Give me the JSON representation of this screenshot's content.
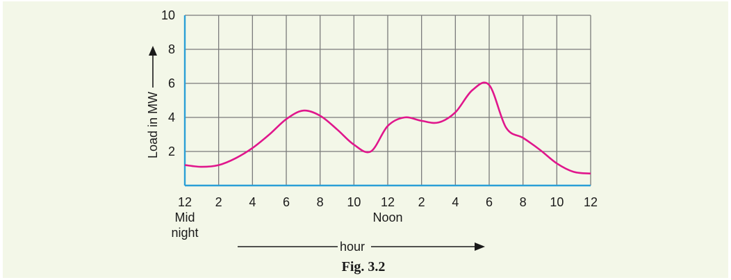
{
  "chart_data": {
    "type": "line",
    "caption": "Fig. 3.2",
    "ylabel": "Load in MW",
    "xlabel": "hour",
    "ylim": [
      0,
      10
    ],
    "xlim": [
      0,
      24
    ],
    "y_ticks": [
      "2",
      "4",
      "6",
      "8",
      "10"
    ],
    "x_ticks": [
      "12",
      "2",
      "4",
      "6",
      "8",
      "10",
      "12",
      "2",
      "4",
      "6",
      "8",
      "10",
      "12"
    ],
    "x_annotations": [
      {
        "label": "Mid",
        "at_hour": 0,
        "line": 1
      },
      {
        "label": "night",
        "at_hour": 0,
        "line": 2
      },
      {
        "label": "Noon",
        "at_hour": 12,
        "line": 1
      }
    ],
    "grid": true,
    "colors": {
      "curve": "#e0168c",
      "axes": "#2a9fd6",
      "grid": "#7a7a7a",
      "background": "#f3f7e8"
    },
    "series": [
      {
        "x": [
          0,
          1,
          2,
          3,
          4,
          5,
          6,
          7,
          8,
          9,
          10,
          11,
          12,
          13,
          14,
          15,
          16,
          17,
          18,
          19,
          20,
          21,
          22,
          23,
          24
        ],
        "y": [
          1.2,
          1.1,
          1.2,
          1.6,
          2.2,
          3.0,
          3.9,
          4.4,
          4.1,
          3.3,
          2.4,
          2.0,
          3.5,
          4.0,
          3.8,
          3.7,
          4.3,
          5.6,
          5.9,
          3.4,
          2.8,
          2.1,
          1.3,
          0.8,
          0.7
        ]
      }
    ]
  }
}
